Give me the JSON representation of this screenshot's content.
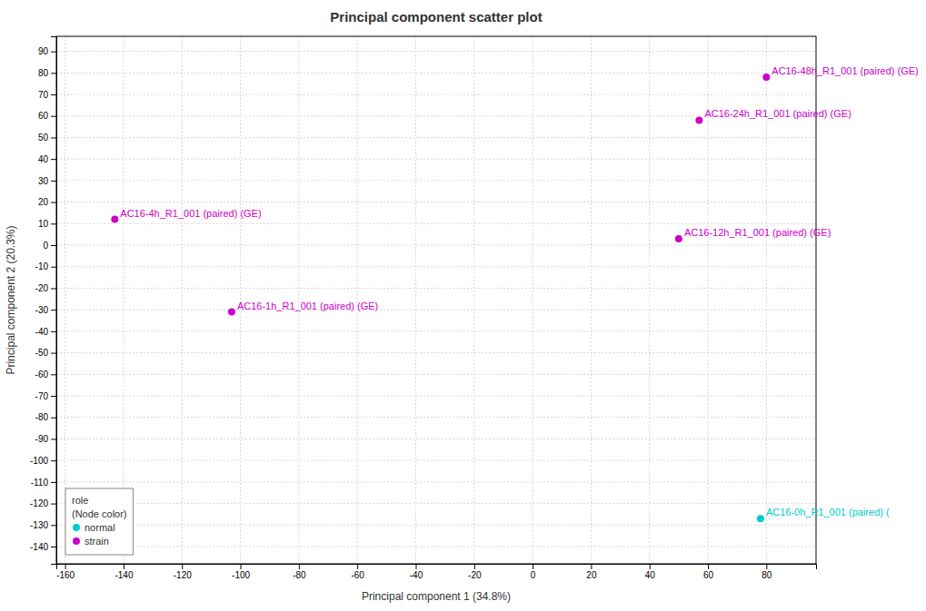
{
  "chart_data": {
    "type": "scatter",
    "title": "Principal component scatter plot",
    "x_label": "Principal component 1 (34.8%)",
    "y_label": "Principal component 2 (20.3%)",
    "xlim": [
      -163,
      97
    ],
    "ylim": [
      -148,
      97
    ],
    "xticks": [
      -160,
      -140,
      -120,
      -100,
      -80,
      -60,
      -40,
      -20,
      0,
      20,
      40,
      60,
      80
    ],
    "yticks": [
      -140,
      -130,
      -120,
      -110,
      -100,
      -90,
      -80,
      -70,
      -60,
      -50,
      -40,
      -30,
      -20,
      -10,
      0,
      10,
      20,
      30,
      40,
      50,
      60,
      70,
      80,
      90
    ],
    "grid": true,
    "legend": "lower left",
    "legend_title": "role\n(Node color)",
    "series": [
      {
        "name": "normal",
        "color": "#00cccc",
        "x": [
          78
        ],
        "values": [
          -127
        ],
        "labels": [
          "AC16-0h_R1_001 (paired) ("
        ]
      },
      {
        "name": "strain",
        "color": "#cc00cc",
        "x": [
          80,
          57,
          -143,
          50,
          -103
        ],
        "values": [
          78,
          58,
          12,
          3,
          -31
        ],
        "labels": [
          "AC16-48h_R1_001 (paired) (GE)",
          "AC16-24h_R1_001 (paired) (GE)",
          "AC16-4h_R1_001 (paired) (GE)",
          "AC16-12h_R1_001 (paired) (GE)",
          "AC16-1h_R1_001 (paired) (GE)"
        ]
      }
    ]
  }
}
